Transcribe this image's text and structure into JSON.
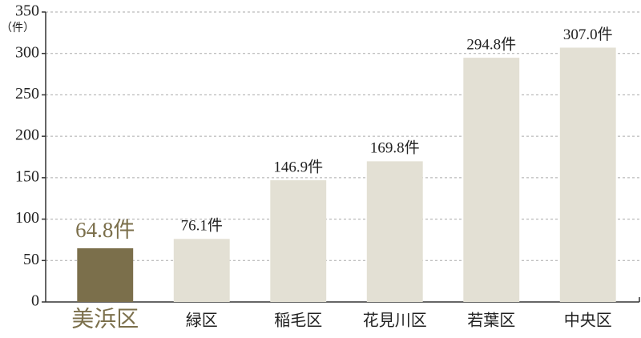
{
  "chart_data": {
    "type": "bar",
    "unit_label": "（件）",
    "categories": [
      "美浜区",
      "緑区",
      "稲毛区",
      "花見川区",
      "若葉区",
      "中央区"
    ],
    "values": [
      64.8,
      76.1,
      146.9,
      169.8,
      294.8,
      307.0
    ],
    "value_labels": [
      "64.8件",
      "76.1件",
      "146.9件",
      "169.8件",
      "294.8件",
      "307.0件"
    ],
    "color": "#e3e0d4",
    "highlight": {
      "index": 0,
      "color": "#7b6f4b"
    },
    "ylim": [
      0,
      350
    ],
    "yticks": [
      0,
      50,
      100,
      150,
      200,
      250,
      300,
      350
    ],
    "grid": true
  }
}
